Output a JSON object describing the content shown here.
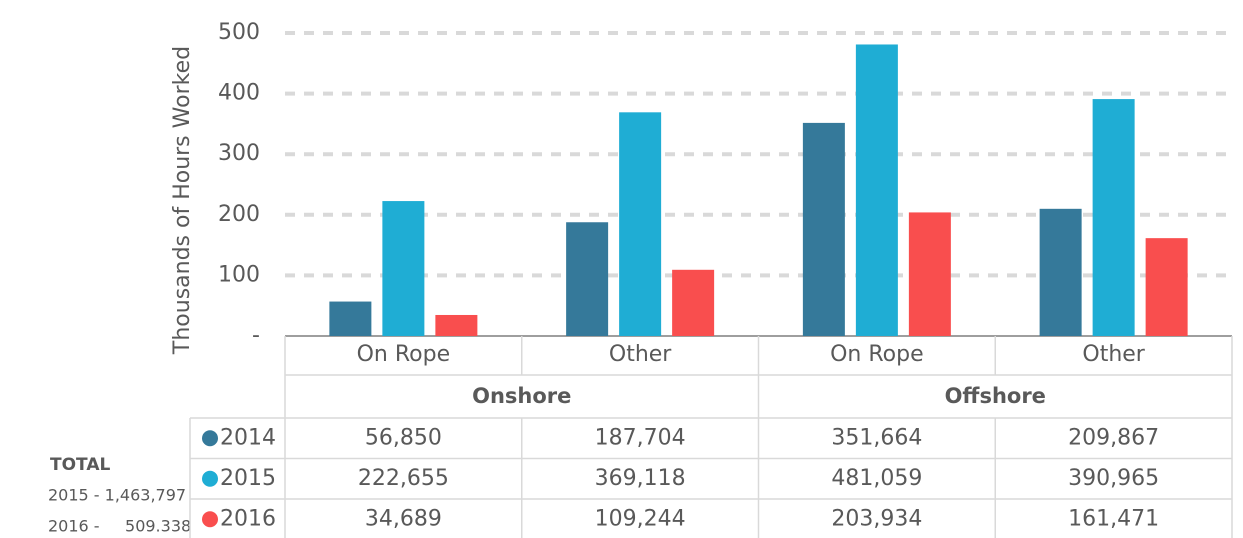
{
  "chart_data": {
    "type": "bar",
    "y_axis_label": "Thousands of  Hours Worked",
    "categories": [
      "On Rope",
      "Other",
      "On Rope",
      "Other"
    ],
    "groups": [
      {
        "name": "Onshore",
        "span": 2
      },
      {
        "name": "Offshore",
        "span": 2
      }
    ],
    "series": [
      {
        "name": "2014",
        "color": "#35799a",
        "values": [
          56.85,
          187.704,
          351.664,
          209.867
        ],
        "value_labels": [
          "56,850",
          "187,704",
          "351,664",
          "209,867"
        ]
      },
      {
        "name": "2015",
        "color": "#1fadd4",
        "values": [
          222.655,
          369.118,
          481.059,
          390.965
        ],
        "value_labels": [
          "222,655",
          "369,118",
          "481,059",
          "390,965"
        ]
      },
      {
        "name": "2016",
        "color": "#f94e4e",
        "values": [
          34.689,
          109.244,
          203.934,
          161.471
        ],
        "value_labels": [
          "34,689",
          "109,244",
          "203,934",
          "161,471"
        ]
      }
    ],
    "ylim": [
      0,
      500
    ],
    "yticks": [
      {
        "value": 0,
        "label": "-"
      },
      100,
      200,
      300,
      400,
      500
    ],
    "grid": true,
    "totals_title": "TOTAL",
    "totals": [
      "2015 -  1,463,797",
      "2016 -     509.338"
    ]
  }
}
